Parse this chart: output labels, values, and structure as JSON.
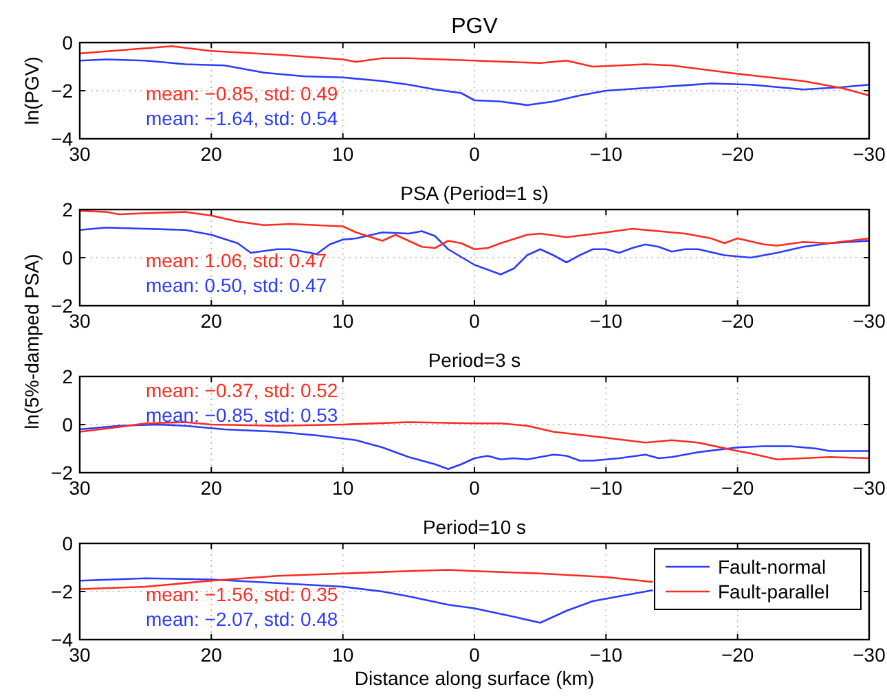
{
  "chart_data": [
    {
      "type": "line",
      "title": "PGV",
      "ylabel": "ln(PGV)",
      "xlim": [
        30,
        -30
      ],
      "xticks": [
        30,
        20,
        10,
        0,
        -10,
        -20,
        -30
      ],
      "ylim": [
        -4,
        0
      ],
      "yticks": [
        -4,
        -2,
        0
      ],
      "grid": true,
      "line_style": "solid",
      "marker": "none",
      "annotations": [
        "mean: −0.85, std: 0.49",
        "mean: −1.64, std: 0.54"
      ],
      "series": [
        {
          "color": "#2a3cff",
          "x": [
            30,
            28,
            25,
            22,
            19,
            16,
            13,
            10,
            7,
            5,
            3,
            1,
            0,
            -2,
            -4,
            -6,
            -8,
            -10,
            -14,
            -18,
            -21,
            -25,
            -28,
            -30
          ],
          "values": [
            -0.75,
            -0.7,
            -0.75,
            -0.9,
            -0.95,
            -1.25,
            -1.4,
            -1.45,
            -1.6,
            -1.75,
            -1.95,
            -2.1,
            -2.4,
            -2.45,
            -2.6,
            -2.45,
            -2.2,
            -2.0,
            -1.85,
            -1.7,
            -1.75,
            -1.95,
            -1.85,
            -1.75
          ]
        },
        {
          "color": "#ff2a1f",
          "x": [
            30,
            23,
            20,
            15,
            10,
            9,
            7,
            5,
            0,
            -5,
            -7,
            -9,
            -13,
            -15,
            -20,
            -25,
            -28,
            -30
          ],
          "values": [
            -0.45,
            -0.15,
            -0.35,
            -0.5,
            -0.7,
            -0.8,
            -0.65,
            -0.65,
            -0.75,
            -0.85,
            -0.75,
            -1.0,
            -0.9,
            -0.95,
            -1.3,
            -1.6,
            -1.9,
            -2.2
          ]
        }
      ]
    },
    {
      "type": "line",
      "title": "PSA (Period=1 s)",
      "ylabel": "ln(5%-damped PSA)",
      "xlim": [
        30,
        -30
      ],
      "xticks": [
        30,
        20,
        10,
        0,
        -10,
        -20,
        -30
      ],
      "ylim": [
        -2,
        2
      ],
      "yticks": [
        -2,
        0,
        2
      ],
      "grid": true,
      "line_style": "solid",
      "marker": "none",
      "annotations": [
        "mean: 1.06, std: 0.47",
        "mean: 0.50, std: 0.47"
      ],
      "series": [
        {
          "color": "#2a3cff",
          "x": [
            30,
            28,
            25,
            22,
            20,
            18,
            17,
            15,
            14,
            12,
            11,
            10,
            9,
            7,
            5,
            4,
            3,
            2,
            0,
            -2,
            -3,
            -4,
            -5,
            -6,
            -7,
            -8,
            -9,
            -10,
            -11,
            -12,
            -13,
            -14,
            -15,
            -16,
            -17,
            -19,
            -21,
            -23,
            -25,
            -27,
            -30
          ],
          "values": [
            1.15,
            1.25,
            1.2,
            1.15,
            0.95,
            0.6,
            0.2,
            0.35,
            0.35,
            0.15,
            0.55,
            0.75,
            0.8,
            1.05,
            1.0,
            1.1,
            0.9,
            0.35,
            -0.3,
            -0.7,
            -0.45,
            0.1,
            0.35,
            0.1,
            -0.2,
            0.1,
            0.35,
            0.35,
            0.2,
            0.4,
            0.55,
            0.45,
            0.25,
            0.35,
            0.35,
            0.1,
            0.0,
            0.2,
            0.45,
            0.6,
            0.7
          ]
        },
        {
          "color": "#ff2a1f",
          "x": [
            30,
            28,
            27,
            25,
            22,
            20,
            18,
            16,
            14,
            12,
            10,
            9,
            7,
            6,
            4,
            3,
            2,
            1,
            0,
            -1,
            -2,
            -4,
            -5,
            -7,
            -10,
            -12,
            -14,
            -16,
            -18,
            -19,
            -20,
            -22,
            -23,
            -25,
            -27,
            -30
          ],
          "values": [
            1.95,
            1.9,
            1.8,
            1.85,
            1.9,
            1.75,
            1.5,
            1.35,
            1.4,
            1.35,
            1.3,
            1.05,
            0.7,
            0.95,
            0.45,
            0.4,
            0.7,
            0.6,
            0.35,
            0.4,
            0.6,
            0.95,
            1.0,
            0.85,
            1.05,
            1.2,
            1.1,
            1.0,
            0.8,
            0.6,
            0.8,
            0.55,
            0.5,
            0.65,
            0.6,
            0.8
          ]
        }
      ]
    },
    {
      "type": "line",
      "title": "Period=3 s",
      "xlim": [
        30,
        -30
      ],
      "xticks": [
        30,
        20,
        10,
        0,
        -10,
        -20,
        -30
      ],
      "ylim": [
        -2,
        2
      ],
      "yticks": [
        -2,
        0,
        2
      ],
      "grid": true,
      "line_style": "solid",
      "marker": "none",
      "annotations": [
        "mean: −0.37, std: 0.52",
        "mean: −0.85, std: 0.53"
      ],
      "series": [
        {
          "color": "#2a3cff",
          "x": [
            30,
            27,
            24,
            22,
            19,
            15,
            12,
            9,
            7,
            5,
            3,
            2,
            1,
            0,
            -1,
            -2,
            -3,
            -4,
            -6,
            -7,
            -8,
            -9,
            -11,
            -13,
            -14,
            -15,
            -17,
            -20,
            -22,
            -24,
            -26,
            -27,
            -30
          ],
          "values": [
            -0.2,
            -0.05,
            0.0,
            -0.05,
            -0.2,
            -0.3,
            -0.45,
            -0.65,
            -0.95,
            -1.35,
            -1.65,
            -1.85,
            -1.65,
            -1.4,
            -1.3,
            -1.45,
            -1.4,
            -1.45,
            -1.25,
            -1.3,
            -1.5,
            -1.5,
            -1.4,
            -1.25,
            -1.4,
            -1.35,
            -1.15,
            -0.95,
            -0.9,
            -0.9,
            -1.0,
            -1.1,
            -1.1
          ]
        },
        {
          "color": "#ff2a1f",
          "x": [
            30,
            27,
            25,
            22,
            20,
            15,
            10,
            5,
            0,
            -2,
            -4,
            -6,
            -10,
            -13,
            -15,
            -17,
            -20,
            -21,
            -23,
            -25,
            -27,
            -30
          ],
          "values": [
            -0.3,
            -0.1,
            0.05,
            0.1,
            0.0,
            -0.05,
            0.0,
            0.1,
            0.05,
            0.05,
            -0.05,
            -0.3,
            -0.55,
            -0.75,
            -0.65,
            -0.75,
            -1.1,
            -1.2,
            -1.45,
            -1.4,
            -1.35,
            -1.4
          ]
        }
      ]
    },
    {
      "type": "line",
      "title": "Period=10 s",
      "xlabel": "Distance along surface (km)",
      "xlim": [
        30,
        -30
      ],
      "xticks": [
        30,
        20,
        10,
        0,
        -10,
        -20,
        -30
      ],
      "ylim": [
        -4,
        0
      ],
      "yticks": [
        -4,
        -2,
        0
      ],
      "grid": true,
      "line_style": "solid",
      "marker": "none",
      "legend": "top right",
      "annotations": [
        "mean: −1.56, std: 0.35",
        "mean: −2.07, std: 0.48"
      ],
      "series": [
        {
          "name": "Fault-normal",
          "color": "#2a3cff",
          "x": [
            30,
            25,
            20,
            15,
            10,
            7,
            5,
            2,
            0,
            -3,
            -5,
            -7,
            -9,
            -12,
            -13.5
          ],
          "values": [
            -1.55,
            -1.45,
            -1.5,
            -1.65,
            -1.8,
            -2.0,
            -2.2,
            -2.55,
            -2.7,
            -3.05,
            -3.3,
            -2.8,
            -2.4,
            -2.1,
            -1.95
          ]
        },
        {
          "name": "Fault-parallel",
          "color": "#ff2a1f",
          "x": [
            30,
            25,
            20,
            15,
            10,
            5,
            2,
            0,
            -5,
            -10,
            -13.5
          ],
          "values": [
            -1.9,
            -1.8,
            -1.55,
            -1.35,
            -1.25,
            -1.15,
            -1.1,
            -1.15,
            -1.25,
            -1.4,
            -1.6
          ]
        }
      ]
    }
  ]
}
